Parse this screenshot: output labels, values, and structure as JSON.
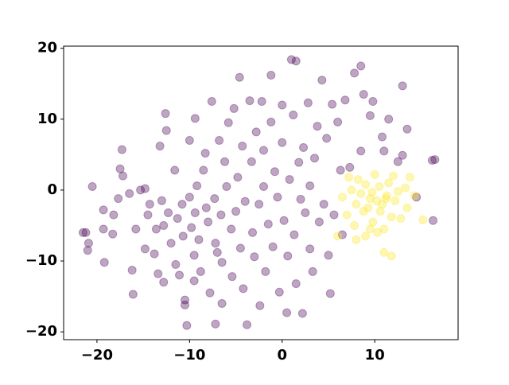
{
  "chart_data": {
    "type": "scatter",
    "xlim": [
      -23.6,
      19.0
    ],
    "ylim": [
      -21.1,
      20.3
    ],
    "xticks": [
      {
        "value": -20,
        "label": "−20"
      },
      {
        "value": -10,
        "label": "−10"
      },
      0,
      10
    ],
    "yticks": [
      {
        "value": -20,
        "label": "−20"
      },
      {
        "value": -10,
        "label": "−10"
      },
      0,
      10,
      20
    ],
    "alpha": 0.35,
    "series": [
      {
        "color": "#440154",
        "x": [
          -21.5,
          -21.2,
          -20.9,
          -21,
          -20.5,
          -19.3,
          -19.3,
          -19.2,
          -18.2,
          -18.3,
          -17.7,
          -17.5,
          -17.3,
          -17.2,
          -16.5,
          -16.2,
          -16.1,
          -15.8,
          -15.3,
          -14.8,
          -14.8,
          -14.5,
          -14.3,
          -13.8,
          -13.6,
          -13.4,
          -13.2,
          -13,
          -12.8,
          -12.8,
          -12.6,
          -12.5,
          -12.3,
          -12,
          -11.6,
          -11.5,
          -11.3,
          -11.1,
          -10.8,
          -10.7,
          -10.5,
          -10.5,
          -10.3,
          -10,
          -10,
          -9.8,
          -9.5,
          -9.5,
          -9.4,
          -9.4,
          -9.2,
          -9,
          -8.8,
          -8.5,
          -8.3,
          -8.2,
          -8,
          -7.8,
          -7.6,
          -7.3,
          -7.2,
          -7.2,
          -7,
          -6.8,
          -6.6,
          -6.5,
          -6.5,
          -6.2,
          -6,
          -5.8,
          -5.5,
          -5.4,
          -5.2,
          -5,
          -4.8,
          -4.6,
          -4.5,
          -4.3,
          -4.2,
          -4,
          -3.8,
          -3.5,
          -3.3,
          -3.2,
          -3,
          -2.8,
          -2.5,
          -2.4,
          -2.2,
          -2,
          -2,
          -1.8,
          -1.5,
          -1.2,
          -1.2,
          -1,
          -0.8,
          -0.5,
          -0.3,
          0,
          0,
          0.2,
          0.5,
          0.6,
          0.8,
          1,
          1.2,
          1.3,
          1.5,
          1.5,
          1.8,
          2,
          2.2,
          2.3,
          2.5,
          2.8,
          3,
          3,
          3.3,
          3.5,
          3.8,
          4,
          4.3,
          4.5,
          4.8,
          5,
          5.2,
          5.4,
          5.6,
          6,
          6.3,
          6.5,
          6.8,
          7.3,
          7.8,
          8.5,
          8.5,
          8.8,
          9.5,
          9.8,
          10.8,
          11,
          11.5,
          12.5,
          13,
          13,
          13.5,
          14.5,
          16.2,
          16.5,
          16.3
        ],
        "values": [
          -6,
          -6,
          -7.5,
          -8.5,
          0.5,
          -2.8,
          -5.5,
          -10.2,
          -3.5,
          -6.2,
          -1.2,
          3,
          5.7,
          2,
          -0.5,
          -11.3,
          -14.7,
          -5.5,
          0,
          0.2,
          -8.3,
          -3.5,
          -2,
          -9,
          -5.5,
          -11.8,
          6.2,
          -1.5,
          -5,
          -13,
          10.8,
          8.4,
          -3.2,
          -7.5,
          2.8,
          -10.5,
          -4,
          -12,
          -2,
          -6.5,
          -15.5,
          -16.2,
          -19.1,
          7,
          -1,
          -5.3,
          -9.2,
          -12.8,
          -3.2,
          10.1,
          0.6,
          -7,
          -11.5,
          2.8,
          5.2,
          -2.5,
          -4.5,
          -14.5,
          12.5,
          -1.2,
          -7.5,
          -18.9,
          -8.8,
          7,
          -3.5,
          -10.2,
          -16,
          4,
          0.5,
          9.5,
          -5.5,
          -12.2,
          11.5,
          -3,
          1.8,
          15.9,
          -8.2,
          6.2,
          -13.9,
          -1.6,
          -19,
          12.6,
          4,
          -6,
          -9.4,
          8.2,
          -2,
          -16.3,
          12.5,
          0.5,
          5.6,
          -11.5,
          -4.8,
          16.2,
          9.6,
          -8,
          2.6,
          -1,
          -14.4,
          12,
          6.7,
          -4.3,
          -17.3,
          -9.3,
          1.5,
          18.4,
          10.6,
          -6.3,
          -13.2,
          18.2,
          3.9,
          -1.3,
          -17.4,
          6,
          -3.2,
          12.3,
          -8.3,
          0.6,
          -11.5,
          4.5,
          9,
          -4.5,
          15.5,
          -2,
          7.3,
          -9.2,
          -14.6,
          12.1,
          -3.5,
          9.6,
          2.8,
          -6.3,
          12.7,
          3.2,
          16.5,
          17.5,
          5.5,
          13.5,
          10.5,
          12.5,
          7.5,
          5.5,
          10,
          4,
          14.7,
          4.9,
          8.6,
          -1,
          4.2,
          4.3,
          -4.3
        ]
      },
      {
        "color": "#fde725",
        "x": [
          6.5,
          7,
          7.5,
          7.8,
          8,
          8.2,
          8.5,
          8.8,
          9,
          9,
          9.3,
          9.5,
          9.8,
          10,
          10.2,
          10.5,
          10.6,
          10.8,
          11,
          11,
          11.3,
          11.5,
          11.8,
          11.8,
          12.2,
          12.5,
          12.8,
          13.3,
          13.5,
          13.8,
          14.3,
          15.2,
          6,
          8,
          9.5,
          10.3,
          12,
          7.2,
          11.2,
          9.7
        ],
        "values": [
          -1,
          -3.5,
          0,
          -5,
          -2,
          1.5,
          -0.5,
          -3,
          0.8,
          -6.5,
          -2.5,
          -1.2,
          -4.5,
          2.2,
          -1.5,
          0.5,
          -3,
          -2,
          -5.5,
          -8.8,
          -0.8,
          1,
          -9.3,
          -3.8,
          -1.5,
          -0.2,
          -4,
          0.3,
          -2.5,
          1.8,
          -0.8,
          -4.2,
          -6.5,
          -7,
          -5.5,
          -6,
          2,
          1.8,
          -1.2,
          -0.3
        ]
      }
    ]
  }
}
